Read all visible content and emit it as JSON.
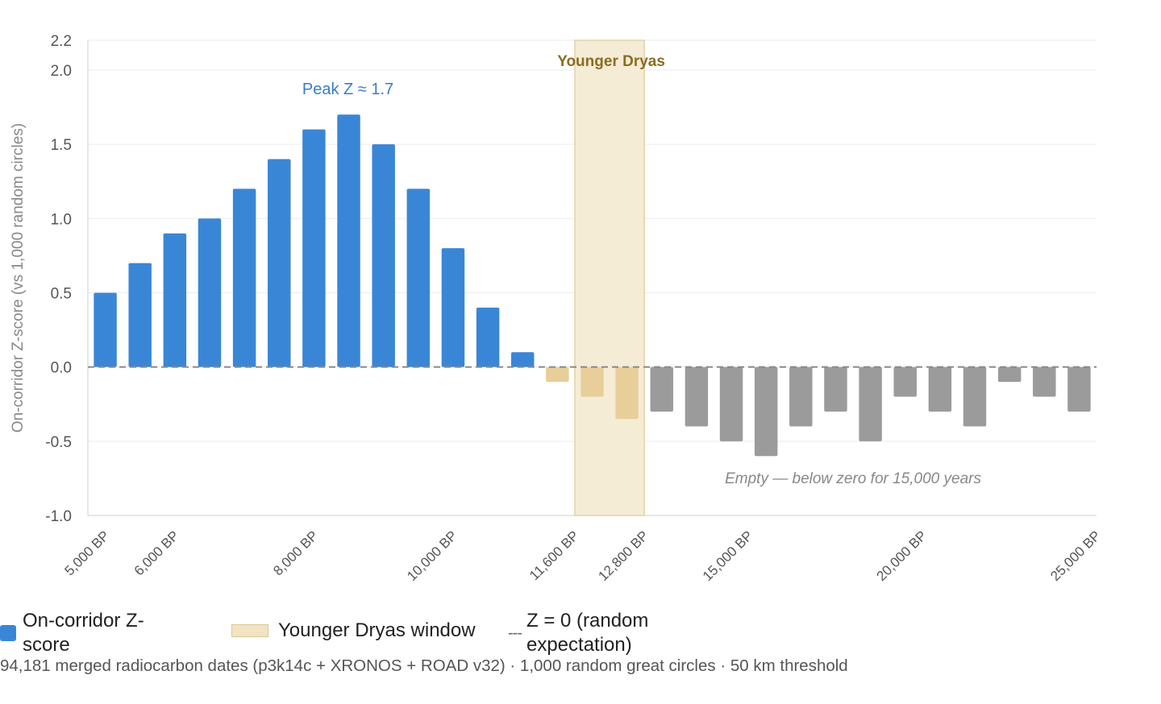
{
  "chart_data": {
    "type": "bar",
    "ylabel": "On-corridor Z-score (vs 1,000 random circles)",
    "ylim": [
      -1.0,
      2.2
    ],
    "yticks": [
      "2.2",
      "2.0",
      "1.5",
      "1.0",
      "0.5",
      "0.0",
      "-0.5",
      "-1.0"
    ],
    "ytick_values": [
      2.2,
      2.0,
      1.5,
      1.0,
      0.5,
      0.0,
      -0.5,
      -1.0
    ],
    "x_tick_labels": [
      {
        "bar": 0,
        "label": "5,000 BP"
      },
      {
        "bar": 2,
        "label": "6,000 BP"
      },
      {
        "bar": 6,
        "label": "8,000 BP"
      },
      {
        "bar": 10,
        "label": "10,000 BP"
      },
      {
        "bar": 13.5,
        "label": "11,600 BP"
      },
      {
        "bar": 15.5,
        "label": "12,800 BP"
      },
      {
        "bar": 18.5,
        "label": "15,000 BP"
      },
      {
        "bar": 23.5,
        "label": "20,000 BP"
      },
      {
        "bar": 28.5,
        "label": "25,000 BP"
      }
    ],
    "values": [
      0.5,
      0.7,
      0.9,
      1.0,
      1.2,
      1.4,
      1.6,
      1.7,
      1.5,
      1.2,
      0.8,
      0.4,
      0.1,
      -0.1,
      -0.2,
      -0.35,
      -0.3,
      -0.4,
      -0.5,
      -0.6,
      -0.4,
      -0.3,
      -0.5,
      -0.2,
      -0.3,
      -0.4,
      -0.1,
      -0.2,
      -0.3
    ],
    "bar_groups": [
      "blue",
      "blue",
      "blue",
      "blue",
      "blue",
      "blue",
      "blue",
      "blue",
      "blue",
      "blue",
      "blue",
      "blue",
      "blue",
      "yd",
      "yd",
      "yd",
      "gray",
      "gray",
      "gray",
      "gray",
      "gray",
      "gray",
      "gray",
      "gray",
      "gray",
      "gray",
      "gray",
      "gray",
      "gray"
    ],
    "younger_dryas_window": {
      "from_bar": 13.5,
      "to_bar": 15.5,
      "label": "Younger Dryas"
    },
    "zero_line": {
      "y": 0,
      "style": "dashed"
    },
    "annotations": [
      {
        "text": "Peak Z ≈ 1.7",
        "bar": 7,
        "y": 1.87
      },
      {
        "text": "Empty — below zero for 15,000 years",
        "bar": 21.5,
        "y": -0.75
      }
    ],
    "grid": true,
    "legend": [
      {
        "label": "On-corridor Z-score",
        "marker": "blue-square"
      },
      {
        "label": "Younger Dryas window",
        "marker": "tan-box"
      },
      {
        "label": "Z = 0 (random expectation)",
        "marker": "dashed-line",
        "symbol": "---"
      }
    ],
    "legend_position": "bottom",
    "caption": "94,181 merged radiocarbon dates (p3k14c + XRONOS + ROAD v32) · 1,000 random great circles · 50 km threshold"
  },
  "colors": {
    "blue": "#3a86d6",
    "yd": "#e8cf99",
    "gray": "#9b9b9b",
    "yd_band": "#f5ecd6",
    "yd_band_border": "#e2d3a8",
    "yd_label": "#8b6d22",
    "peak_label": "#3a7bc8",
    "grid": "#ececec",
    "axis": "#cfcfcf",
    "zero_line": "#888888"
  }
}
